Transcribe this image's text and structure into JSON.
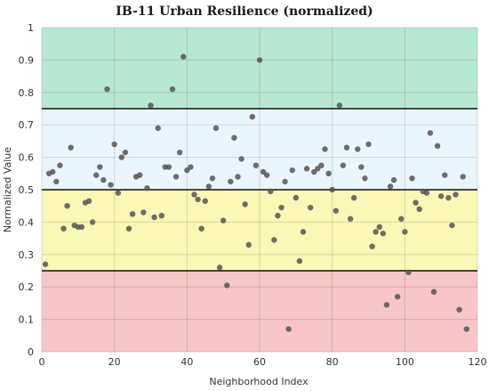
{
  "chart_data": {
    "type": "scatter",
    "title": "IB-11 Urban Resilience (normalized)",
    "xlabel": "Neighborhood Index",
    "ylabel": "Normalized Value",
    "xlim": [
      0,
      120
    ],
    "ylim": [
      0,
      1
    ],
    "xticks": [
      "0",
      "20",
      "40",
      "60",
      "80",
      "100",
      "120"
    ],
    "yticks": [
      "0",
      "0.1",
      "0.2",
      "0.3",
      "0.4",
      "0.5",
      "0.6",
      "0.7",
      "0.8",
      "0.9",
      "1"
    ],
    "grid": true,
    "bands": [
      {
        "from": 0.75,
        "to": 1.0,
        "color": "#b7e8d3"
      },
      {
        "from": 0.5,
        "to": 0.75,
        "color": "#eaf6fd"
      },
      {
        "from": 0.25,
        "to": 0.5,
        "color": "#fbf7b6"
      },
      {
        "from": 0.0,
        "to": 0.25,
        "color": "#f8c6c8"
      }
    ],
    "threshold_lines": [
      0.75,
      0.5,
      0.25
    ],
    "marker_color": "#555555",
    "points": [
      [
        1,
        0.27
      ],
      [
        2,
        0.55
      ],
      [
        3,
        0.555
      ],
      [
        4,
        0.525
      ],
      [
        5,
        0.575
      ],
      [
        6,
        0.38
      ],
      [
        7,
        0.45
      ],
      [
        8,
        0.63
      ],
      [
        9,
        0.39
      ],
      [
        10,
        0.385
      ],
      [
        11,
        0.385
      ],
      [
        12,
        0.46
      ],
      [
        13,
        0.465
      ],
      [
        14,
        0.4
      ],
      [
        15,
        0.545
      ],
      [
        16,
        0.57
      ],
      [
        17,
        0.53
      ],
      [
        18,
        0.81
      ],
      [
        19,
        0.515
      ],
      [
        20,
        0.64
      ],
      [
        21,
        0.49
      ],
      [
        22,
        0.6
      ],
      [
        23,
        0.615
      ],
      [
        24,
        0.38
      ],
      [
        25,
        0.425
      ],
      [
        26,
        0.54
      ],
      [
        27,
        0.545
      ],
      [
        28,
        0.43
      ],
      [
        29,
        0.505
      ],
      [
        30,
        0.76
      ],
      [
        31,
        0.415
      ],
      [
        32,
        0.69
      ],
      [
        33,
        0.42
      ],
      [
        34,
        0.57
      ],
      [
        35,
        0.57
      ],
      [
        36,
        0.81
      ],
      [
        37,
        0.54
      ],
      [
        38,
        0.615
      ],
      [
        39,
        0.91
      ],
      [
        40,
        0.56
      ],
      [
        41,
        0.57
      ],
      [
        42,
        0.485
      ],
      [
        43,
        0.47
      ],
      [
        44,
        0.38
      ],
      [
        45,
        0.465
      ],
      [
        46,
        0.51
      ],
      [
        47,
        0.535
      ],
      [
        48,
        0.69
      ],
      [
        49,
        0.26
      ],
      [
        50,
        0.405
      ],
      [
        51,
        0.205
      ],
      [
        52,
        0.525
      ],
      [
        53,
        0.66
      ],
      [
        54,
        0.54
      ],
      [
        55,
        0.595
      ],
      [
        56,
        0.455
      ],
      [
        57,
        0.33
      ],
      [
        58,
        0.725
      ],
      [
        59,
        0.575
      ],
      [
        60,
        0.9
      ],
      [
        61,
        0.555
      ],
      [
        62,
        0.545
      ],
      [
        63,
        0.495
      ],
      [
        64,
        0.345
      ],
      [
        65,
        0.42
      ],
      [
        66,
        0.445
      ],
      [
        67,
        0.525
      ],
      [
        68,
        0.07
      ],
      [
        69,
        0.56
      ],
      [
        70,
        0.475
      ],
      [
        71,
        0.28
      ],
      [
        72,
        0.37
      ],
      [
        73,
        0.565
      ],
      [
        74,
        0.445
      ],
      [
        75,
        0.555
      ],
      [
        76,
        0.565
      ],
      [
        77,
        0.575
      ],
      [
        78,
        0.625
      ],
      [
        79,
        0.55
      ],
      [
        80,
        0.5
      ],
      [
        81,
        0.435
      ],
      [
        82,
        0.76
      ],
      [
        83,
        0.575
      ],
      [
        84,
        0.63
      ],
      [
        85,
        0.41
      ],
      [
        86,
        0.475
      ],
      [
        87,
        0.625
      ],
      [
        88,
        0.57
      ],
      [
        89,
        0.535
      ],
      [
        90,
        0.64
      ],
      [
        91,
        0.325
      ],
      [
        92,
        0.37
      ],
      [
        93,
        0.385
      ],
      [
        94,
        0.365
      ],
      [
        95,
        0.145
      ],
      [
        96,
        0.51
      ],
      [
        97,
        0.53
      ],
      [
        98,
        0.17
      ],
      [
        99,
        0.41
      ],
      [
        100,
        0.37
      ],
      [
        101,
        0.245
      ],
      [
        102,
        0.535
      ],
      [
        103,
        0.46
      ],
      [
        104,
        0.44
      ],
      [
        105,
        0.495
      ],
      [
        106,
        0.49
      ],
      [
        107,
        0.675
      ],
      [
        108,
        0.185
      ],
      [
        109,
        0.635
      ],
      [
        110,
        0.48
      ],
      [
        111,
        0.545
      ],
      [
        112,
        0.475
      ],
      [
        113,
        0.39
      ],
      [
        114,
        0.485
      ],
      [
        115,
        0.13
      ],
      [
        116,
        0.54
      ],
      [
        117,
        0.07
      ]
    ]
  }
}
